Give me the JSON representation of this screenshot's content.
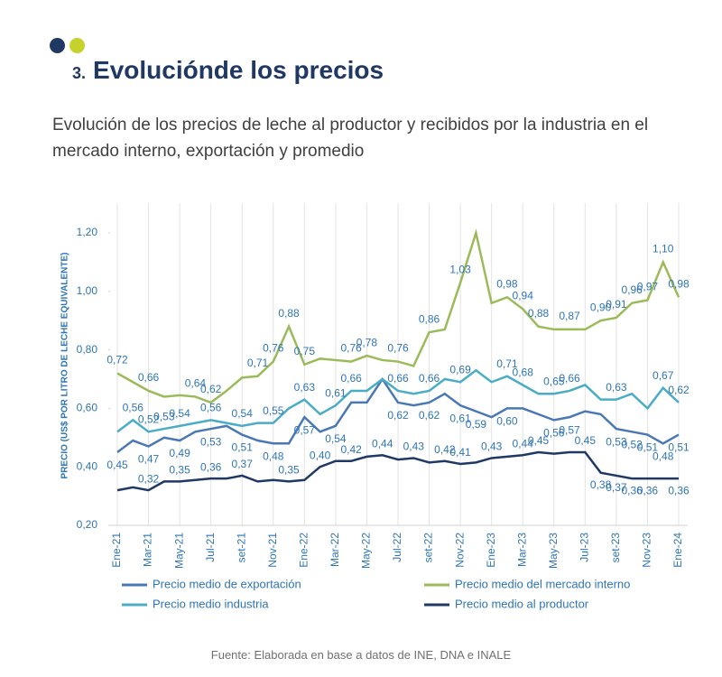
{
  "header": {
    "number": "3.",
    "title": "Evoluciónde los precios"
  },
  "subtitle": "Evolución de los precios de leche al productor y recibidos por la industria en el mercado interno, exportación y promedio",
  "source": "Fuente: Elaborada en base a datos de INE, DNA e INALE",
  "chart_data": {
    "type": "line",
    "ylabel": "PRECIO (US$ POR LITRO DE LECHE EQUIVALENTE)",
    "categories": [
      "Ene-21",
      null,
      "Mar-21",
      null,
      "May-21",
      null,
      "Jul-21",
      null,
      "set-21",
      null,
      "Nov-21",
      null,
      "Ene-22",
      null,
      "Mar-22",
      null,
      "May-22",
      null,
      "Jul-22",
      null,
      "set-22",
      null,
      "Nov-22",
      null,
      "Ene-23",
      null,
      "Mar-23",
      null,
      "May-23",
      null,
      "Jul-23",
      null,
      "set-23",
      null,
      "Nov-23",
      null,
      "Ene-24"
    ],
    "ylim": [
      0.2,
      1.25
    ],
    "yticks": [
      {
        "value": 0.2,
        "label": "0,20"
      },
      {
        "value": 0.4,
        "label": "0,40"
      },
      {
        "value": 0.6,
        "label": "0,60"
      },
      {
        "value": 0.8,
        "label": "0,80"
      },
      {
        "value": 1.0,
        "label": "1,00"
      },
      {
        "value": 1.2,
        "label": "1,20"
      }
    ],
    "series": [
      {
        "name": "Precio medio de exportación",
        "color": "#4a78b4",
        "values": [
          0.45,
          0.49,
          0.47,
          0.5,
          0.49,
          0.52,
          0.53,
          0.54,
          0.51,
          0.49,
          0.48,
          0.48,
          0.57,
          0.52,
          0.54,
          0.62,
          0.62,
          0.7,
          0.62,
          0.61,
          0.62,
          0.65,
          0.61,
          0.59,
          0.57,
          0.6,
          0.6,
          0.58,
          0.56,
          0.57,
          0.59,
          0.58,
          0.53,
          0.52,
          0.51,
          0.48,
          0.51
        ],
        "value_labels": [
          "0,45",
          null,
          "0,47",
          null,
          "0,49",
          null,
          "0,53",
          null,
          "0,51",
          null,
          "0,48",
          null,
          "0,57",
          null,
          "0,54",
          null,
          null,
          null,
          "0,62",
          null,
          "0,62",
          null,
          "0,61",
          "0,59",
          null,
          "0,60",
          null,
          null,
          "0,56",
          "0,57",
          null,
          null,
          "0,53",
          "0,52",
          "0,51",
          "0,48",
          "0,51"
        ]
      },
      {
        "name": "Precio medio del mercado interno",
        "color": "#9bbb59",
        "values": [
          0.72,
          0.69,
          0.66,
          0.64,
          0.645,
          0.64,
          0.62,
          0.66,
          0.705,
          0.71,
          0.76,
          0.88,
          0.75,
          0.77,
          0.765,
          0.76,
          0.78,
          0.765,
          0.76,
          0.745,
          0.86,
          0.87,
          1.03,
          1.2,
          0.96,
          0.98,
          0.94,
          0.88,
          0.87,
          0.87,
          0.87,
          0.9,
          0.91,
          0.96,
          0.97,
          1.1,
          0.98
        ],
        "value_labels": [
          "0,72",
          null,
          "0,66",
          null,
          null,
          "0,64",
          "0,62",
          null,
          null,
          "0,71",
          "0,76",
          "0,88",
          "0,75",
          null,
          null,
          "0,76",
          "0,78",
          null,
          "0,76",
          null,
          "0,86",
          null,
          "1,03",
          null,
          null,
          "0,98",
          "0,94",
          "0,88",
          null,
          "0,87",
          null,
          "0,90",
          "0,91",
          "0,96",
          "0,97",
          "1,10",
          "0,98"
        ]
      },
      {
        "name": "Precio medio industria",
        "color": "#4bacc6",
        "values": [
          0.52,
          0.56,
          0.52,
          0.53,
          0.54,
          0.55,
          0.56,
          0.55,
          0.54,
          0.55,
          0.55,
          0.6,
          0.63,
          0.58,
          0.61,
          0.66,
          0.66,
          0.7,
          0.66,
          0.65,
          0.66,
          0.7,
          0.69,
          0.73,
          0.69,
          0.71,
          0.68,
          0.65,
          0.65,
          0.66,
          0.68,
          0.63,
          0.63,
          0.65,
          0.6,
          0.67,
          0.62
        ],
        "value_labels": [
          null,
          "0,56",
          "0,52",
          "0,53",
          "0,54",
          null,
          "0,56",
          null,
          "0,54",
          null,
          "0,55",
          null,
          "0,63",
          null,
          "0,61",
          "0,66",
          null,
          null,
          "0,66",
          null,
          "0,66",
          null,
          "0,69",
          null,
          null,
          "0,71",
          "0,68",
          null,
          "0,65",
          "0,66",
          null,
          null,
          "0,63",
          null,
          null,
          "0,67",
          "0,62"
        ]
      },
      {
        "name": "Precio medio al productor",
        "color": "#1f3864",
        "values": [
          0.32,
          0.33,
          0.32,
          0.35,
          0.35,
          0.355,
          0.36,
          0.36,
          0.37,
          0.35,
          0.355,
          0.35,
          0.355,
          0.4,
          0.42,
          0.42,
          0.435,
          0.44,
          0.425,
          0.43,
          0.415,
          0.42,
          0.41,
          0.415,
          0.43,
          0.435,
          0.44,
          0.45,
          0.445,
          0.45,
          0.45,
          0.38,
          0.37,
          0.36,
          0.36,
          0.36,
          0.36
        ],
        "value_labels": [
          null,
          null,
          "0,32",
          null,
          "0,35",
          null,
          "0,36",
          null,
          "0,37",
          null,
          null,
          "0,35",
          null,
          "0,40",
          null,
          "0,42",
          null,
          "0,44",
          null,
          "0,43",
          null,
          "0,42",
          "0,41",
          null,
          "0,43",
          null,
          "0,44",
          "0,45",
          null,
          null,
          "0,45",
          "0,38",
          "0,37",
          "0,36",
          "0,36",
          null,
          "0,36"
        ]
      }
    ]
  }
}
